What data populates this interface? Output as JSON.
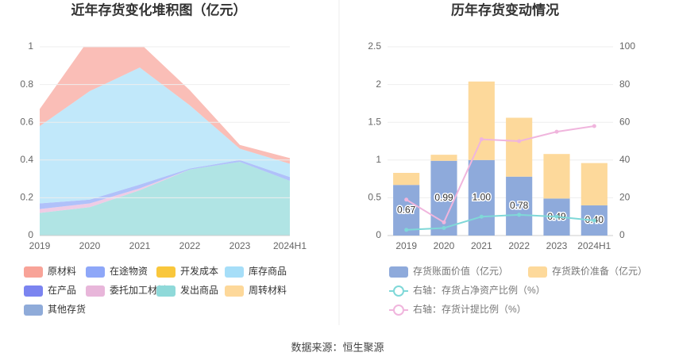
{
  "chart_data": [
    {
      "type": "stacked-area",
      "title": "近年存货变化堆积图（亿元）",
      "categories": [
        "2019",
        "2020",
        "2021",
        "2022",
        "2023",
        "2024H1"
      ],
      "ylim": [
        0,
        1
      ],
      "yticks": [
        0,
        0.2,
        0.4,
        0.6,
        0.8,
        1
      ],
      "grid": true,
      "series": [
        {
          "name": "原材料",
          "color": "#f8a398",
          "values": [
            0.09,
            0.28,
            0.13,
            0.08,
            0.02,
            0.03
          ]
        },
        {
          "name": "在途物资",
          "color": "#8ea7f8",
          "values": [
            0.03,
            0.02,
            0.02,
            0.005,
            0.01,
            0.02
          ]
        },
        {
          "name": "开发成本",
          "color": "#f9c73c",
          "values": [
            0,
            0,
            0,
            0,
            0,
            0
          ]
        },
        {
          "name": "库存商品",
          "color": "#a6def8",
          "values": [
            0.41,
            0.575,
            0.62,
            0.335,
            0.06,
            0.07
          ]
        },
        {
          "name": "在产品",
          "color": "#7b84f0",
          "values": [
            0,
            0,
            0,
            0,
            0,
            0
          ]
        },
        {
          "name": "委托加工材料",
          "color": "#e8b6da",
          "values": [
            0.02,
            0.02,
            0.01,
            0,
            0,
            0
          ]
        },
        {
          "name": "发出商品",
          "color": "#8fd9d9",
          "values": [
            0.12,
            0.15,
            0.24,
            0.35,
            0.39,
            0.29
          ]
        },
        {
          "name": "周转材料",
          "color": "#fdd89a",
          "values": [
            0,
            0,
            0,
            0,
            0,
            0
          ]
        },
        {
          "name": "其他存货",
          "color": "#8fabd9",
          "values": [
            0,
            0,
            0,
            0,
            0,
            0
          ]
        }
      ]
    },
    {
      "type": "bar-line",
      "title": "历年存货变动情况",
      "categories": [
        "2019",
        "2020",
        "2021",
        "2022",
        "2023",
        "2024H1"
      ],
      "ylim": [
        0,
        2.5
      ],
      "yticks": [
        0,
        0.5,
        1,
        1.5,
        2,
        2.5
      ],
      "y2lim": [
        0,
        100
      ],
      "y2ticks": [
        0,
        20,
        40,
        60,
        80,
        100
      ],
      "grid": true,
      "series": [
        {
          "name": "存货账面价值（亿元）",
          "color": "#8eaadb",
          "values": [
            0.67,
            0.99,
            1.0,
            0.78,
            0.49,
            0.4
          ],
          "value_labels": [
            "0.67",
            "0.99",
            "1.00",
            "0.78",
            "0.49",
            "0.40"
          ]
        },
        {
          "name": "存货跌价准备（亿元）",
          "color": "#fdd99b",
          "values": [
            0.16,
            0.08,
            1.04,
            0.78,
            0.59,
            0.56
          ]
        },
        {
          "name": "右轴：存货占净资产比例（%）",
          "color": "#7fd8d8",
          "axis": "y2",
          "values": [
            3,
            4,
            10,
            11,
            10,
            8
          ]
        },
        {
          "name": "右轴：存货计提比例（%）",
          "color": "#f0b5dd",
          "axis": "y2",
          "values": [
            19,
            7,
            51,
            50,
            55,
            58
          ]
        }
      ]
    }
  ],
  "source": "数据来源：恒生聚源"
}
